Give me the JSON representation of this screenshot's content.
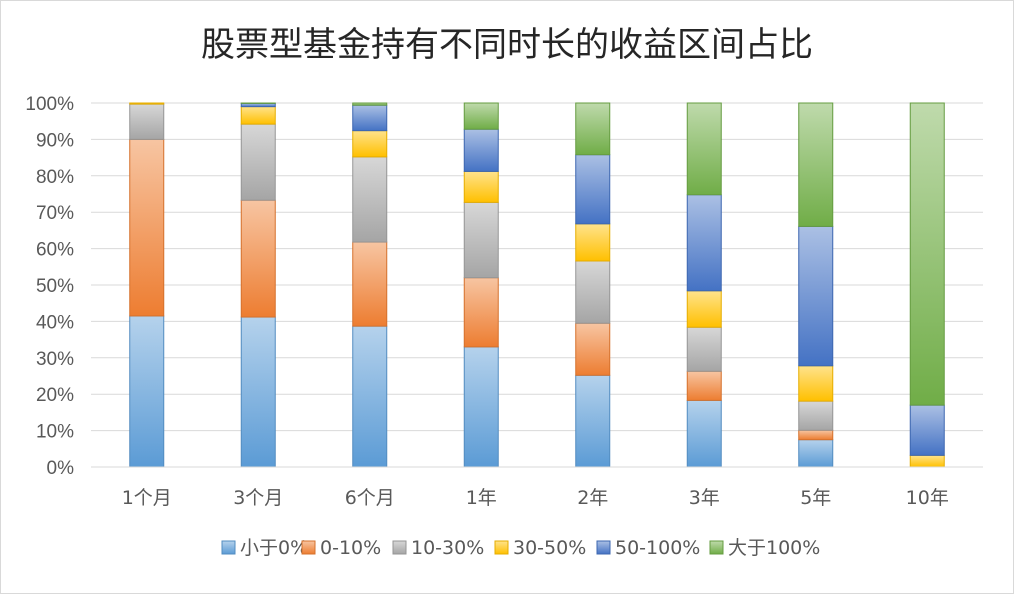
{
  "chart_data": {
    "type": "bar",
    "stacked": true,
    "title": "股票型基金持有不同时长的收益区间占比",
    "xlabel": "",
    "ylabel": "",
    "categories": [
      "1个月",
      "3个月",
      "6个月",
      "1年",
      "2年",
      "3年",
      "5年",
      "10年"
    ],
    "ylim": [
      0,
      100
    ],
    "y_ticks": [
      "0%",
      "10%",
      "20%",
      "30%",
      "40%",
      "50%",
      "60%",
      "70%",
      "80%",
      "90%",
      "100%"
    ],
    "grid": true,
    "legend_position": "bottom",
    "series": [
      {
        "name": "小于0%",
        "color": "#5B9BD5",
        "values": [
          41.5,
          41.2,
          38.7,
          33.0,
          25.2,
          18.3,
          7.5,
          0
        ]
      },
      {
        "name": "0-10%",
        "color": "#ED7D31",
        "values": [
          48.5,
          32.1,
          23.1,
          19.0,
          14.3,
          8.0,
          2.6,
          0
        ]
      },
      {
        "name": "10-30%",
        "color": "#A5A5A5",
        "values": [
          9.7,
          20.9,
          23.4,
          20.7,
          17.1,
          12.1,
          8.0,
          0
        ]
      },
      {
        "name": "30-50%",
        "color": "#FFC000",
        "values": [
          0.3,
          4.8,
          7.2,
          8.5,
          10.2,
          10.0,
          9.7,
          3.2
        ]
      },
      {
        "name": "50-100%",
        "color": "#4472C4",
        "values": [
          0,
          0.9,
          7.0,
          11.6,
          19.0,
          26.4,
          38.3,
          13.8
        ]
      },
      {
        "name": "大于100%",
        "color": "#70AD47",
        "values": [
          0,
          0.1,
          0.6,
          7.2,
          14.2,
          25.2,
          33.9,
          83.0
        ]
      }
    ]
  }
}
